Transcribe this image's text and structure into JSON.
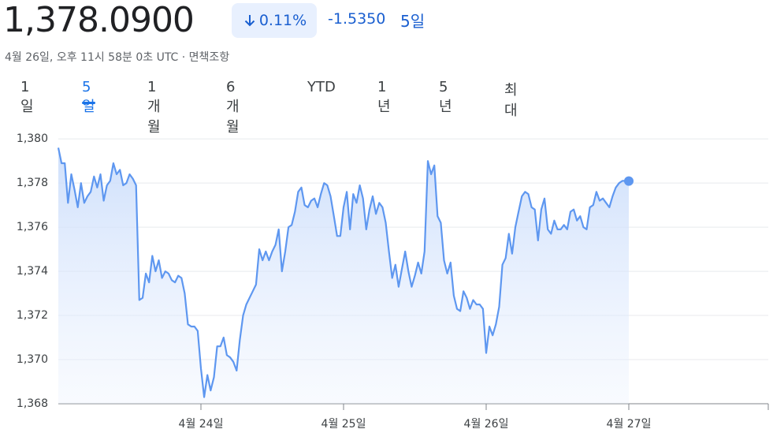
{
  "header": {
    "price": "1,378.0900",
    "change_percent": "0.11%",
    "change": "-1.5350",
    "period": "5일",
    "timestamp": "4월 26일, 오후 11시 58분 0초 UTC · 면책조항"
  },
  "tabs": [
    "1일",
    "5일",
    "1개월",
    "6개월",
    "YTD",
    "1년",
    "5년",
    "최대"
  ],
  "active_tab": "5일",
  "chart_data": {
    "type": "line",
    "color": "#5e97f0",
    "grid": true,
    "xlim": [
      0,
      5
    ],
    "xticks": [
      {
        "value": 1,
        "label": "4월 24일"
      },
      {
        "value": 2,
        "label": "4월 25일"
      },
      {
        "value": 3,
        "label": "4월 26일"
      },
      {
        "value": 4,
        "label": "4월 27일"
      }
    ],
    "ylim": [
      1368,
      1380.9
    ],
    "yticks": [
      {
        "value": 1368,
        "label": "1,368"
      },
      {
        "value": 1370,
        "label": "1,370"
      },
      {
        "value": 1372,
        "label": "1,372"
      },
      {
        "value": 1374,
        "label": "1,374"
      },
      {
        "value": 1376,
        "label": "1,376"
      },
      {
        "value": 1378,
        "label": "1,378"
      },
      {
        "value": 1380,
        "label": "1,380"
      }
    ],
    "series": [
      {
        "color": "#5e97f0",
        "values": [
          1379.6,
          1378.9,
          1378.9,
          1377.1,
          1378.4,
          1377.7,
          1376.9,
          1378.0,
          1377.1,
          1377.4,
          1377.6,
          1378.3,
          1377.8,
          1378.4,
          1377.2,
          1377.9,
          1378.1,
          1378.9,
          1378.4,
          1378.6,
          1377.9,
          1378.0,
          1378.4,
          1378.2,
          1377.9,
          1372.7,
          1372.8,
          1373.9,
          1373.5,
          1374.7,
          1374.0,
          1374.5,
          1373.7,
          1374.0,
          1373.9,
          1373.6,
          1373.5,
          1373.8,
          1373.7,
          1373.0,
          1371.6,
          1371.5,
          1371.5,
          1371.3,
          1369.6,
          1368.3,
          1369.3,
          1368.6,
          1369.2,
          1370.6,
          1370.6,
          1371.0,
          1370.2,
          1370.1,
          1369.9,
          1369.5,
          1370.9,
          1372.0,
          1372.5,
          1372.8,
          1373.1,
          1373.4,
          1375.0,
          1374.5,
          1374.9,
          1374.5,
          1374.9,
          1375.2,
          1375.9,
          1374.0,
          1374.9,
          1376.0,
          1376.1,
          1376.7,
          1377.6,
          1377.8,
          1377.0,
          1376.9,
          1377.2,
          1377.3,
          1376.9,
          1377.5,
          1378.0,
          1377.9,
          1377.4,
          1376.5,
          1375.6,
          1375.6,
          1376.9,
          1377.6,
          1375.9,
          1377.5,
          1377.1,
          1377.9,
          1377.3,
          1375.9,
          1376.8,
          1377.4,
          1376.6,
          1377.1,
          1376.9,
          1376.2,
          1374.9,
          1373.7,
          1374.3,
          1373.3,
          1374.1,
          1374.9,
          1374.0,
          1373.3,
          1373.8,
          1374.4,
          1373.9,
          1374.9,
          1379.0,
          1378.4,
          1378.8,
          1376.5,
          1376.2,
          1374.5,
          1373.9,
          1374.4,
          1372.9,
          1372.3,
          1372.2,
          1373.1,
          1372.8,
          1372.3,
          1372.7,
          1372.5,
          1372.5,
          1372.3,
          1370.3,
          1371.5,
          1371.1,
          1371.6,
          1372.4,
          1374.3,
          1374.6,
          1375.7,
          1374.8,
          1376.0,
          1376.7,
          1377.4,
          1377.6,
          1377.5,
          1376.9,
          1376.8,
          1375.4,
          1376.8,
          1377.3,
          1375.9,
          1375.7,
          1376.3,
          1375.9,
          1375.9,
          1376.1,
          1375.9,
          1376.7,
          1376.8,
          1376.3,
          1376.5,
          1376.0,
          1375.9,
          1376.9,
          1377.0,
          1377.6,
          1377.2,
          1377.3,
          1377.1,
          1376.9,
          1377.4,
          1377.8,
          1378.0,
          1378.1,
          1378.1,
          1378.09
        ]
      }
    ]
  }
}
